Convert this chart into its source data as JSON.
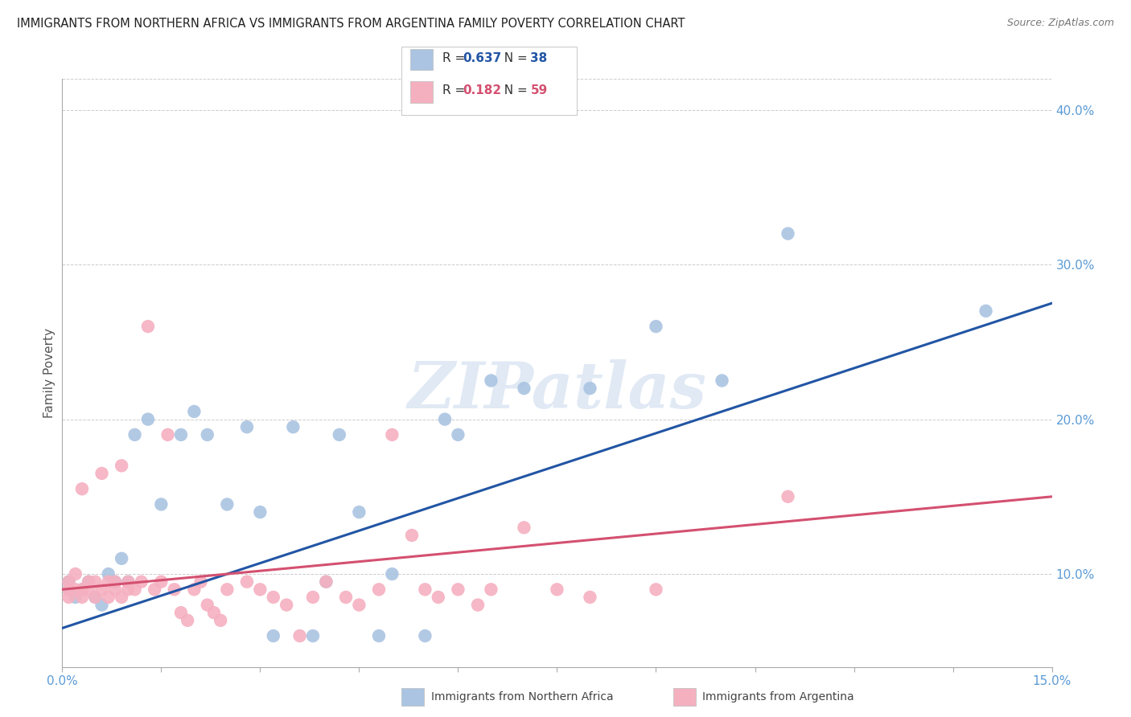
{
  "title": "IMMIGRANTS FROM NORTHERN AFRICA VS IMMIGRANTS FROM ARGENTINA FAMILY POVERTY CORRELATION CHART",
  "source": "Source: ZipAtlas.com",
  "ylabel": "Family Poverty",
  "xlim": [
    0.0,
    0.15
  ],
  "ylim": [
    0.04,
    0.42
  ],
  "yticks_right": [
    0.1,
    0.2,
    0.3,
    0.4
  ],
  "ytick_labels_right": [
    "10.0%",
    "20.0%",
    "30.0%",
    "40.0%"
  ],
  "xticks": [
    0.0,
    0.015,
    0.03,
    0.045,
    0.06,
    0.075,
    0.09,
    0.105,
    0.12,
    0.135,
    0.15
  ],
  "xtick_labels_sparse": {
    "0.0": "0.0%",
    "0.15": "15.0%"
  },
  "series": [
    {
      "name": "Immigrants from Northern Africa",
      "color": "#aac4e2",
      "line_color": "#2255a4",
      "R": 0.637,
      "N": 38,
      "x": [
        0.001,
        0.001,
        0.002,
        0.003,
        0.004,
        0.005,
        0.006,
        0.007,
        0.008,
        0.009,
        0.01,
        0.011,
        0.013,
        0.015,
        0.018,
        0.02,
        0.022,
        0.025,
        0.028,
        0.03,
        0.032,
        0.035,
        0.038,
        0.04,
        0.042,
        0.045,
        0.048,
        0.05,
        0.055,
        0.058,
        0.06,
        0.065,
        0.07,
        0.08,
        0.09,
        0.1,
        0.11,
        0.14
      ],
      "y": [
        0.095,
        0.09,
        0.085,
        0.09,
        0.095,
        0.085,
        0.08,
        0.1,
        0.095,
        0.11,
        0.095,
        0.19,
        0.2,
        0.145,
        0.19,
        0.205,
        0.19,
        0.145,
        0.195,
        0.14,
        0.06,
        0.195,
        0.06,
        0.095,
        0.19,
        0.14,
        0.06,
        0.1,
        0.06,
        0.2,
        0.19,
        0.225,
        0.22,
        0.22,
        0.26,
        0.225,
        0.32,
        0.27
      ]
    },
    {
      "name": "Immigrants from Argentina",
      "color": "#f5b0c0",
      "line_color": "#d45070",
      "R": 0.182,
      "N": 59,
      "x": [
        0.001,
        0.001,
        0.001,
        0.002,
        0.002,
        0.003,
        0.003,
        0.003,
        0.004,
        0.004,
        0.005,
        0.005,
        0.006,
        0.006,
        0.007,
        0.007,
        0.008,
        0.008,
        0.009,
        0.009,
        0.01,
        0.01,
        0.011,
        0.012,
        0.013,
        0.014,
        0.015,
        0.016,
        0.017,
        0.018,
        0.019,
        0.02,
        0.021,
        0.022,
        0.023,
        0.024,
        0.025,
        0.028,
        0.03,
        0.032,
        0.034,
        0.036,
        0.038,
        0.04,
        0.043,
        0.045,
        0.048,
        0.05,
        0.053,
        0.055,
        0.057,
        0.06,
        0.063,
        0.065,
        0.07,
        0.075,
        0.08,
        0.09,
        0.11
      ],
      "y": [
        0.085,
        0.09,
        0.095,
        0.09,
        0.1,
        0.085,
        0.09,
        0.155,
        0.09,
        0.095,
        0.085,
        0.095,
        0.09,
        0.165,
        0.085,
        0.095,
        0.09,
        0.095,
        0.085,
        0.17,
        0.09,
        0.095,
        0.09,
        0.095,
        0.26,
        0.09,
        0.095,
        0.19,
        0.09,
        0.075,
        0.07,
        0.09,
        0.095,
        0.08,
        0.075,
        0.07,
        0.09,
        0.095,
        0.09,
        0.085,
        0.08,
        0.06,
        0.085,
        0.095,
        0.085,
        0.08,
        0.09,
        0.19,
        0.125,
        0.09,
        0.085,
        0.09,
        0.08,
        0.09,
        0.13,
        0.09,
        0.085,
        0.09,
        0.15
      ]
    }
  ],
  "legend_box_colors": [
    "#aac4e2",
    "#f5b0c0"
  ],
  "legend_line_colors": [
    "#2255a4",
    "#d45070"
  ],
  "watermark_text": "ZIPatlas",
  "background_color": "#ffffff",
  "grid_color": "#cccccc",
  "title_fontsize": 11,
  "tick_label_color": "#5b9bd5",
  "ylabel_color": "#555555"
}
